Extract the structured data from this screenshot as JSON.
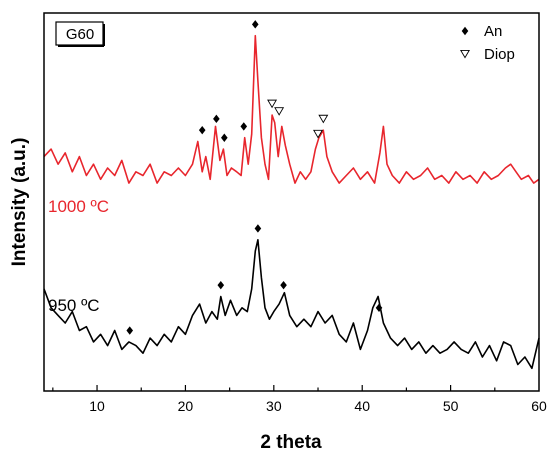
{
  "chart_data": {
    "type": "line",
    "xlabel": "2 theta",
    "ylabel": "Intensity (a.u.)",
    "xlim": [
      4,
      60
    ],
    "ylim": [
      0,
      100
    ],
    "xticks": [
      10,
      20,
      30,
      40,
      50,
      60
    ],
    "sample_label": "G60",
    "legend": {
      "placement": "top-right",
      "entries": [
        {
          "label": "An",
          "marker": "filled-diamond"
        },
        {
          "label": "Diop",
          "marker": "open-triangle-down"
        }
      ]
    },
    "series": [
      {
        "name": "1000 ºC",
        "color": "#e8262d",
        "x": [
          4,
          4.8,
          5.6,
          6.4,
          7.2,
          8,
          8.8,
          9.6,
          10.4,
          11.2,
          12,
          12.8,
          13.6,
          14.4,
          15.2,
          16,
          16.8,
          17.6,
          18.4,
          19.2,
          20,
          20.8,
          21.4,
          21.9,
          22.3,
          22.8,
          23.4,
          23.9,
          24.3,
          24.7,
          25.2,
          25.8,
          26.3,
          26.7,
          27.1,
          27.5,
          27.9,
          28.2,
          28.6,
          29,
          29.4,
          29.8,
          30.1,
          30.5,
          30.9,
          31.3,
          31.8,
          32.4,
          33,
          33.6,
          34.2,
          34.7,
          35.1,
          35.6,
          36,
          36.6,
          37.4,
          38.2,
          39,
          39.8,
          40.6,
          41.4,
          42,
          42.4,
          42.8,
          43.4,
          44.2,
          45,
          45.8,
          46.6,
          47.4,
          48.2,
          49,
          49.8,
          50.6,
          51.4,
          52.2,
          53,
          53.8,
          54.6,
          55.4,
          56.2,
          56.8,
          57.4,
          58,
          58.8,
          59.4,
          60
        ],
        "y": [
          62,
          64,
          60,
          63,
          58,
          62,
          57,
          60,
          56,
          59,
          57,
          61,
          55,
          58,
          57,
          60,
          55,
          58,
          57,
          59,
          57,
          60,
          66,
          58,
          62,
          56,
          70,
          61,
          64,
          57,
          59,
          58,
          57,
          67,
          60,
          68,
          94,
          82,
          67,
          60,
          56,
          73,
          71,
          62,
          70,
          65,
          60,
          55,
          58,
          56,
          58,
          64,
          67,
          69,
          62,
          58,
          55,
          57,
          59,
          56,
          58,
          55,
          63,
          70,
          60,
          57,
          55,
          58,
          56,
          57,
          59,
          56,
          57,
          55,
          58,
          56,
          57,
          55,
          58,
          56,
          57,
          59,
          60,
          58,
          56,
          57,
          55,
          56
        ]
      },
      {
        "name": "950 ºC",
        "color": "#000000",
        "x": [
          4,
          4.8,
          5.6,
          6.4,
          7.2,
          8,
          8.8,
          9.6,
          10.4,
          11.2,
          12,
          12.8,
          13.6,
          14.4,
          15.2,
          16,
          16.8,
          17.6,
          18.4,
          19.2,
          20,
          20.8,
          21.6,
          22.3,
          23,
          23.6,
          24,
          24.5,
          25.1,
          25.8,
          26.4,
          27,
          27.5,
          27.9,
          28.2,
          28.6,
          29,
          29.5,
          30,
          30.6,
          31.2,
          31.8,
          32.6,
          33.4,
          34.2,
          35,
          35.8,
          36.6,
          37.4,
          38.2,
          39,
          39.8,
          40.6,
          41.2,
          41.8,
          42.4,
          43.2,
          44,
          44.8,
          45.6,
          46.4,
          47.2,
          48,
          48.8,
          49.6,
          50.4,
          51.2,
          52,
          52.8,
          53.6,
          54.4,
          55.2,
          56,
          56.8,
          57.6,
          58.4,
          59.2,
          60
        ],
        "y": [
          27,
          22,
          20,
          18,
          21,
          16,
          17,
          13,
          15,
          12,
          16,
          11,
          13,
          12,
          10,
          14,
          12,
          15,
          13,
          17,
          15,
          20,
          23,
          18,
          21,
          19,
          25,
          20,
          24,
          20,
          22,
          21,
          27,
          37,
          40,
          30,
          22,
          19,
          21,
          23,
          26,
          20,
          17,
          19,
          17,
          21,
          18,
          20,
          15,
          13,
          18,
          11,
          16,
          22,
          25,
          18,
          14,
          12,
          14,
          11,
          13,
          10,
          12,
          10,
          11,
          13,
          11,
          10,
          13,
          9,
          12,
          8,
          13,
          12,
          7,
          9,
          6,
          14
        ]
      }
    ],
    "annotations": [
      {
        "marker": "filled-diamond",
        "series": "1000 ºC",
        "x": 21.9,
        "y": 69
      },
      {
        "marker": "filled-diamond",
        "series": "1000 ºC",
        "x": 23.5,
        "y": 72
      },
      {
        "marker": "filled-diamond",
        "series": "1000 ºC",
        "x": 24.4,
        "y": 67
      },
      {
        "marker": "filled-diamond",
        "series": "1000 ºC",
        "x": 26.6,
        "y": 70
      },
      {
        "marker": "filled-diamond",
        "series": "1000 ºC",
        "x": 27.9,
        "y": 97
      },
      {
        "marker": "open-triangle-down",
        "series": "1000 ºC",
        "x": 29.8,
        "y": 76
      },
      {
        "marker": "open-triangle-down",
        "series": "1000 ºC",
        "x": 30.6,
        "y": 74
      },
      {
        "marker": "open-triangle-down",
        "series": "1000 ºC",
        "x": 35.0,
        "y": 68
      },
      {
        "marker": "open-triangle-down",
        "series": "1000 ºC",
        "x": 35.6,
        "y": 72
      },
      {
        "marker": "filled-diamond",
        "series": "950 ºC",
        "x": 13.7,
        "y": 16
      },
      {
        "marker": "filled-diamond",
        "series": "950 ºC",
        "x": 24.0,
        "y": 28
      },
      {
        "marker": "filled-diamond",
        "series": "950 ºC",
        "x": 28.2,
        "y": 43
      },
      {
        "marker": "filled-diamond",
        "series": "950 ºC",
        "x": 31.1,
        "y": 28
      },
      {
        "marker": "filled-diamond",
        "series": "950 ºC",
        "x": 41.9,
        "y": 22
      }
    ],
    "grid": false
  }
}
